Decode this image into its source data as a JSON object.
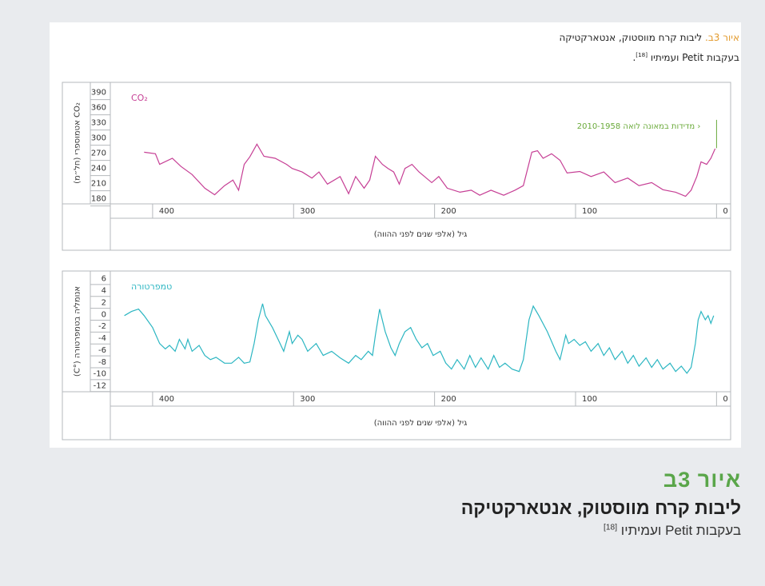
{
  "top_caption": {
    "label": "איור 3ב.",
    "title": "ליבות קרח מווסטוק, אנטארקטיקה",
    "credit": "בעקבות Petit ועמיתיו",
    "ref": "[18]",
    "end": "."
  },
  "figure_caption": {
    "label": "איור 3ב",
    "title": "ליבות קרח מווסטוק, אנטארקטיקה",
    "credit": "בעקבות Petit ועמיתיו",
    "ref": "[18]"
  },
  "chart_data": [
    {
      "type": "line",
      "ylabel": "CO₂ אטמוספרי (חל״מ)",
      "xlabel": "גיל (אלפי שנים לפני ההווה)",
      "xlim": [
        430,
        -10
      ],
      "xticks": [
        400,
        300,
        200,
        100,
        0
      ],
      "ylim": [
        170,
        410
      ],
      "yticks": [
        390,
        360,
        330,
        300,
        270,
        240,
        210,
        180
      ],
      "series": [
        {
          "name": "CO₂",
          "color": "#c63f95",
          "x": [
            406,
            398,
            395,
            386,
            380,
            372,
            363,
            356,
            349,
            343,
            339,
            335,
            331,
            326,
            321,
            313,
            305,
            301,
            294,
            287,
            282,
            276,
            267,
            261,
            256,
            250,
            246,
            242,
            237,
            233,
            229,
            225,
            221,
            216,
            211,
            202,
            197,
            191,
            182,
            174,
            168,
            160,
            151,
            143,
            137,
            131,
            127,
            123,
            117,
            111,
            106,
            97,
            89,
            80,
            72,
            63,
            55,
            46,
            38,
            29,
            22,
            18,
            14,
            11,
            7,
            4,
            1
          ],
          "values": [
            272,
            269,
            248,
            260,
            244,
            228,
            201,
            188,
            206,
            217,
            197,
            248,
            263,
            288,
            264,
            260,
            248,
            240,
            233,
            221,
            233,
            209,
            224,
            190,
            224,
            201,
            217,
            264,
            248,
            240,
            233,
            209,
            240,
            248,
            233,
            212,
            224,
            201,
            193,
            197,
            187,
            197,
            187,
            197,
            206,
            272,
            275,
            260,
            269,
            256,
            231,
            234,
            224,
            233,
            212,
            221,
            206,
            212,
            198,
            193,
            185,
            197,
            224,
            253,
            248,
            260,
            279
          ]
        },
        {
          "name": "‹ מדידות במאונה לואה 2010-1958",
          "color": "#6aaa3a",
          "x": [
            0,
            0
          ],
          "values": [
            280,
            336
          ]
        }
      ]
    },
    {
      "type": "line",
      "ylabel": "אנומליה בטמפרטורה (°C)",
      "xlabel": "גיל (אלפי שנים לפני ההווה)",
      "xlim": [
        430,
        -10
      ],
      "xticks": [
        400,
        300,
        200,
        100,
        0
      ],
      "ylim": [
        -13,
        7.3
      ],
      "yticks": [
        6,
        4,
        2,
        0,
        -2,
        -4,
        -6,
        -8,
        -10,
        -12
      ],
      "series": [
        {
          "name": "טמפרטורה",
          "color": "#2cb6c2",
          "x": [
            420,
            415,
            410,
            406,
            400,
            395,
            391,
            388,
            384,
            381,
            377,
            375,
            372,
            367,
            363,
            359,
            355,
            349,
            344,
            339,
            335,
            331,
            328,
            325,
            322,
            320,
            315,
            311,
            307,
            303,
            301,
            297,
            294,
            290,
            284,
            279,
            273,
            267,
            261,
            256,
            252,
            247,
            244,
            242,
            239,
            235,
            231,
            228,
            225,
            221,
            217,
            213,
            209,
            205,
            201,
            196,
            192,
            188,
            184,
            179,
            175,
            171,
            167,
            162,
            158,
            154,
            150,
            145,
            140,
            137,
            133,
            130,
            126,
            120,
            114,
            111,
            107,
            105,
            101,
            97,
            93,
            89,
            84,
            80,
            76,
            72,
            67,
            63,
            59,
            55,
            50,
            46,
            42,
            38,
            33,
            29,
            25,
            21,
            18,
            15,
            13,
            11,
            8,
            6,
            4,
            2
          ],
          "values": [
            -0.2,
            0.5,
            0.9,
            -0.2,
            -2.2,
            -4.9,
            -5.8,
            -5.2,
            -6.2,
            -4.2,
            -5.8,
            -4.2,
            -6.2,
            -5.2,
            -6.9,
            -7.6,
            -7.2,
            -8.2,
            -8.2,
            -7.2,
            -8.2,
            -8.0,
            -4.9,
            -0.9,
            1.8,
            -0.2,
            -2.2,
            -4.2,
            -6.2,
            -2.9,
            -4.9,
            -3.5,
            -4.2,
            -6.2,
            -4.9,
            -6.9,
            -6.2,
            -7.3,
            -8.2,
            -6.9,
            -7.6,
            -6.2,
            -6.9,
            -3.5,
            0.9,
            -2.9,
            -5.6,
            -6.9,
            -4.9,
            -2.9,
            -2.2,
            -4.2,
            -5.6,
            -4.9,
            -6.9,
            -6.2,
            -8.2,
            -9.2,
            -7.6,
            -9.2,
            -6.9,
            -8.9,
            -7.3,
            -9.2,
            -6.9,
            -8.9,
            -8.2,
            -9.2,
            -9.6,
            -7.6,
            -0.9,
            1.4,
            -0.2,
            -2.9,
            -6.2,
            -7.6,
            -3.5,
            -4.9,
            -4.2,
            -5.2,
            -4.6,
            -6.2,
            -4.9,
            -6.9,
            -5.6,
            -7.6,
            -6.2,
            -8.2,
            -6.9,
            -8.7,
            -7.3,
            -8.9,
            -7.6,
            -9.2,
            -8.2,
            -9.6,
            -8.7,
            -9.9,
            -8.9,
            -4.9,
            -0.9,
            0.5,
            -0.9,
            -0.2,
            -1.5,
            -0.2
          ]
        }
      ]
    }
  ]
}
